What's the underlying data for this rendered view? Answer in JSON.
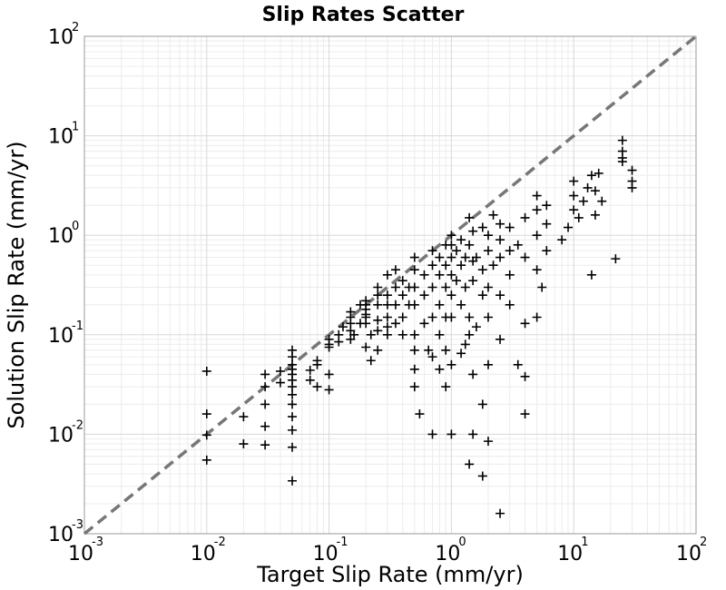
{
  "chart_data": {
    "type": "scatter",
    "title": "Slip Rates Scatter",
    "xlabel": "Target Slip Rate (mm/yr)",
    "ylabel": "Solution Slip Rate (mm/yr)",
    "xscale": "log",
    "yscale": "log",
    "xlim": [
      0.001,
      100
    ],
    "ylim": [
      0.001,
      100
    ],
    "grid": true,
    "marker": "+",
    "marker_color": "#000000",
    "reference_line": {
      "style": "dashed",
      "color": "#777777",
      "from": [
        0.001,
        0.001
      ],
      "to": [
        100,
        100
      ]
    },
    "x_ticks": [
      {
        "value": 0.001,
        "base": "10",
        "exp": "-3"
      },
      {
        "value": 0.01,
        "base": "10",
        "exp": "-2"
      },
      {
        "value": 0.1,
        "base": "10",
        "exp": "-1"
      },
      {
        "value": 1,
        "base": "10",
        "exp": "0"
      },
      {
        "value": 10,
        "base": "10",
        "exp": "1"
      },
      {
        "value": 100,
        "base": "10",
        "exp": "2"
      }
    ],
    "y_ticks": [
      {
        "value": 0.001,
        "base": "10",
        "exp": "-3"
      },
      {
        "value": 0.01,
        "base": "10",
        "exp": "-2"
      },
      {
        "value": 0.1,
        "base": "10",
        "exp": "-1"
      },
      {
        "value": 1,
        "base": "10",
        "exp": "0"
      },
      {
        "value": 10,
        "base": "10",
        "exp": "1"
      },
      {
        "value": 100,
        "base": "10",
        "exp": "2"
      }
    ],
    "points": [
      [
        0.01,
        0.043
      ],
      [
        0.01,
        0.0055
      ],
      [
        0.01,
        0.0098
      ],
      [
        0.01,
        0.016
      ],
      [
        0.02,
        0.008
      ],
      [
        0.02,
        0.015
      ],
      [
        0.03,
        0.0078
      ],
      [
        0.03,
        0.012
      ],
      [
        0.03,
        0.02
      ],
      [
        0.03,
        0.03
      ],
      [
        0.03,
        0.04
      ],
      [
        0.04,
        0.033
      ],
      [
        0.04,
        0.043
      ],
      [
        0.05,
        0.0034
      ],
      [
        0.05,
        0.0074
      ],
      [
        0.05,
        0.011
      ],
      [
        0.05,
        0.015
      ],
      [
        0.05,
        0.02
      ],
      [
        0.05,
        0.025
      ],
      [
        0.05,
        0.03
      ],
      [
        0.05,
        0.035
      ],
      [
        0.05,
        0.04
      ],
      [
        0.05,
        0.045
      ],
      [
        0.05,
        0.05
      ],
      [
        0.05,
        0.06
      ],
      [
        0.05,
        0.07
      ],
      [
        0.07,
        0.035
      ],
      [
        0.07,
        0.044
      ],
      [
        0.08,
        0.055
      ],
      [
        0.08,
        0.05
      ],
      [
        0.08,
        0.03
      ],
      [
        0.1,
        0.028
      ],
      [
        0.1,
        0.04
      ],
      [
        0.1,
        0.075
      ],
      [
        0.1,
        0.08
      ],
      [
        0.1,
        0.09
      ],
      [
        0.12,
        0.085
      ],
      [
        0.12,
        0.1
      ],
      [
        0.13,
        0.12
      ],
      [
        0.15,
        0.09
      ],
      [
        0.15,
        0.11
      ],
      [
        0.15,
        0.13
      ],
      [
        0.15,
        0.15
      ],
      [
        0.15,
        0.17
      ],
      [
        0.16,
        0.1
      ],
      [
        0.18,
        0.13
      ],
      [
        0.18,
        0.2
      ],
      [
        0.2,
        0.075
      ],
      [
        0.2,
        0.13
      ],
      [
        0.2,
        0.15
      ],
      [
        0.2,
        0.16
      ],
      [
        0.2,
        0.18
      ],
      [
        0.2,
        0.2
      ],
      [
        0.2,
        0.22
      ],
      [
        0.22,
        0.055
      ],
      [
        0.22,
        0.1
      ],
      [
        0.25,
        0.07
      ],
      [
        0.25,
        0.11
      ],
      [
        0.25,
        0.14
      ],
      [
        0.25,
        0.2
      ],
      [
        0.25,
        0.25
      ],
      [
        0.25,
        0.3
      ],
      [
        0.3,
        0.1
      ],
      [
        0.3,
        0.12
      ],
      [
        0.3,
        0.15
      ],
      [
        0.3,
        0.2
      ],
      [
        0.3,
        0.25
      ],
      [
        0.3,
        0.4
      ],
      [
        0.35,
        0.13
      ],
      [
        0.35,
        0.2
      ],
      [
        0.35,
        0.3
      ],
      [
        0.35,
        0.45
      ],
      [
        0.4,
        0.1
      ],
      [
        0.4,
        0.15
      ],
      [
        0.4,
        0.25
      ],
      [
        0.4,
        0.35
      ],
      [
        0.45,
        0.2
      ],
      [
        0.45,
        0.3
      ],
      [
        0.5,
        0.03
      ],
      [
        0.5,
        0.045
      ],
      [
        0.5,
        0.07
      ],
      [
        0.5,
        0.1
      ],
      [
        0.5,
        0.2
      ],
      [
        0.5,
        0.3
      ],
      [
        0.5,
        0.45
      ],
      [
        0.5,
        0.6
      ],
      [
        0.55,
        0.016
      ],
      [
        0.6,
        0.13
      ],
      [
        0.6,
        0.25
      ],
      [
        0.6,
        0.4
      ],
      [
        0.65,
        0.07
      ],
      [
        0.7,
        0.01
      ],
      [
        0.7,
        0.06
      ],
      [
        0.7,
        0.15
      ],
      [
        0.7,
        0.3
      ],
      [
        0.7,
        0.5
      ],
      [
        0.7,
        0.7
      ],
      [
        0.8,
        0.045
      ],
      [
        0.8,
        0.1
      ],
      [
        0.8,
        0.2
      ],
      [
        0.8,
        0.4
      ],
      [
        0.8,
        0.6
      ],
      [
        0.9,
        0.03
      ],
      [
        0.9,
        0.07
      ],
      [
        0.9,
        0.15
      ],
      [
        0.9,
        0.3
      ],
      [
        0.9,
        0.5
      ],
      [
        0.9,
        0.8
      ],
      [
        1.0,
        0.01
      ],
      [
        1.0,
        0.05
      ],
      [
        1.0,
        0.15
      ],
      [
        1.0,
        0.25
      ],
      [
        1.0,
        0.4
      ],
      [
        1.0,
        0.6
      ],
      [
        1.0,
        0.8
      ],
      [
        1.0,
        1.0
      ],
      [
        1.1,
        0.35
      ],
      [
        1.1,
        0.7
      ],
      [
        1.2,
        0.065
      ],
      [
        1.2,
        0.2
      ],
      [
        1.2,
        0.5
      ],
      [
        1.2,
        0.9
      ],
      [
        1.3,
        0.08
      ],
      [
        1.3,
        0.3
      ],
      [
        1.3,
        0.6
      ],
      [
        1.4,
        0.005
      ],
      [
        1.4,
        0.1
      ],
      [
        1.4,
        0.15
      ],
      [
        1.4,
        0.8
      ],
      [
        1.4,
        1.5
      ],
      [
        1.5,
        0.01
      ],
      [
        1.5,
        0.04
      ],
      [
        1.5,
        0.35
      ],
      [
        1.5,
        0.55
      ],
      [
        1.5,
        1.1
      ],
      [
        1.6,
        0.12
      ],
      [
        1.6,
        0.6
      ],
      [
        1.8,
        0.0038
      ],
      [
        1.8,
        0.02
      ],
      [
        1.8,
        0.25
      ],
      [
        1.8,
        0.45
      ],
      [
        1.8,
        1.2
      ],
      [
        2.0,
        0.0085
      ],
      [
        2.0,
        0.05
      ],
      [
        2.0,
        0.15
      ],
      [
        2.0,
        0.3
      ],
      [
        2.0,
        0.7
      ],
      [
        2.0,
        1.0
      ],
      [
        2.2,
        0.5
      ],
      [
        2.2,
        1.6
      ],
      [
        2.5,
        0.0016
      ],
      [
        2.5,
        0.09
      ],
      [
        2.5,
        0.25
      ],
      [
        2.5,
        0.6
      ],
      [
        2.5,
        0.9
      ],
      [
        2.5,
        1.3
      ],
      [
        3.0,
        0.2
      ],
      [
        3.0,
        0.4
      ],
      [
        3.0,
        0.7
      ],
      [
        3.0,
        1.2
      ],
      [
        3.5,
        0.05
      ],
      [
        3.5,
        0.8
      ],
      [
        4.0,
        0.016
      ],
      [
        4.0,
        0.038
      ],
      [
        4.0,
        0.13
      ],
      [
        4.0,
        0.6
      ],
      [
        4.0,
        1.5
      ],
      [
        5.0,
        0.15
      ],
      [
        5.0,
        0.45
      ],
      [
        5.0,
        1.0
      ],
      [
        5.0,
        1.8
      ],
      [
        5.0,
        2.5
      ],
      [
        5.5,
        0.3
      ],
      [
        6.0,
        0.7
      ],
      [
        6.0,
        1.3
      ],
      [
        6.0,
        2.0
      ],
      [
        8.0,
        0.9
      ],
      [
        9.0,
        1.2
      ],
      [
        10.0,
        1.8
      ],
      [
        10.0,
        2.5
      ],
      [
        10.0,
        3.5
      ],
      [
        11.0,
        1.5
      ],
      [
        12.0,
        2.2
      ],
      [
        13.0,
        3.0
      ],
      [
        14.0,
        4.0
      ],
      [
        14.0,
        0.4
      ],
      [
        15.0,
        1.6
      ],
      [
        15.0,
        2.8
      ],
      [
        16.0,
        4.2
      ],
      [
        17.0,
        2.2
      ],
      [
        22.0,
        0.58
      ],
      [
        25.0,
        9.0
      ],
      [
        25.0,
        7.0
      ],
      [
        25.0,
        6.0
      ],
      [
        25.0,
        5.5
      ],
      [
        30.0,
        3.0
      ],
      [
        30.0,
        3.5
      ],
      [
        30.0,
        4.5
      ]
    ]
  }
}
